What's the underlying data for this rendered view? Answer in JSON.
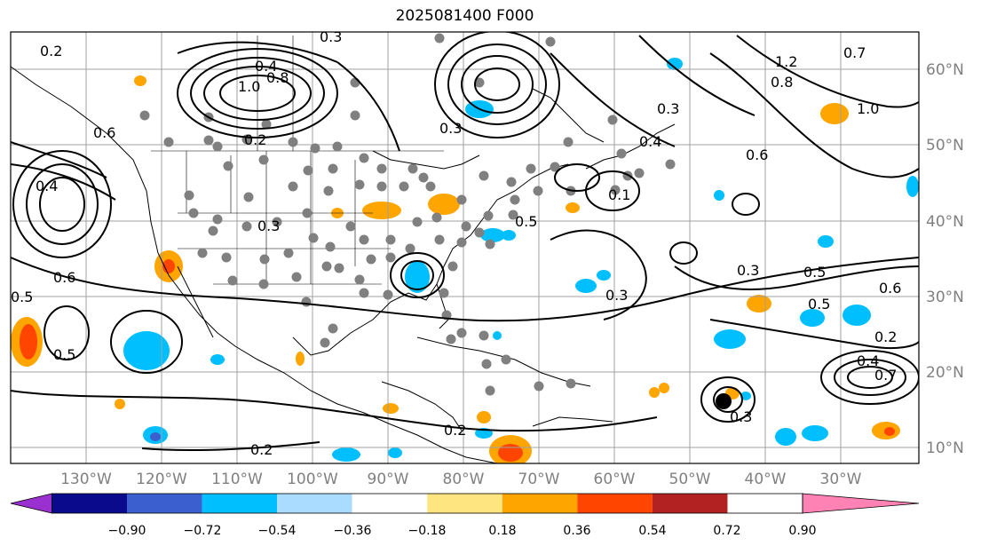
{
  "title": "2025081400 F000",
  "lon_labels": [
    "130°W",
    "120°W",
    "110°W",
    "100°W",
    "90°W",
    "80°W",
    "70°W",
    "60°W",
    "50°W",
    "40°W",
    "30°W"
  ],
  "lat_labels": [
    "60°N",
    "50°N",
    "40°N",
    "30°N",
    "20°N",
    "10°N"
  ],
  "colorbar": {
    "colors": [
      "#9b30d0",
      "#0a0a8c",
      "#3c5fd0",
      "#00bfff",
      "#aadcff",
      "#ffffff",
      "#ffe57f",
      "#ffa500",
      "#ff4500",
      "#b22222",
      "#ff82b4"
    ],
    "tick_labels": [
      "−0.90",
      "−0.72",
      "−0.54",
      "−0.36",
      "−0.18",
      "0.18",
      "0.36",
      "0.54",
      "0.72",
      "0.90"
    ]
  },
  "contour_labels": [
    "0.2",
    "0.3",
    "0.4",
    "1.0",
    "0.8",
    "0.2",
    "0.5",
    "0.6",
    "0.4",
    "0.3",
    "1.2",
    "0.8",
    "0.7",
    "1.0",
    "0.6",
    "0.5",
    "0.3",
    "0.5",
    "0.6",
    "0.3",
    "0.5",
    "0.2",
    "0.2",
    "0.3",
    "0.5",
    "0.4",
    "0.7",
    "0.6",
    "0.4",
    "0.3",
    "0.1",
    "0.2",
    "0.3"
  ],
  "storm_marker": "tropical-cyclone-center"
}
